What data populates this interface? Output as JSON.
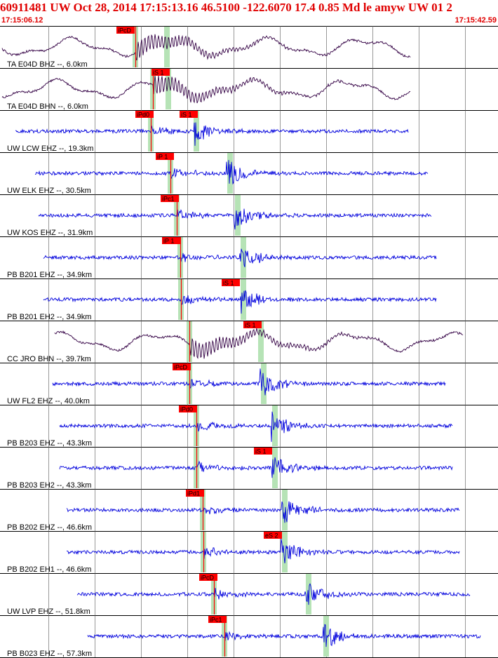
{
  "header": {
    "title": "60911481 UW Oct 28, 2014 17:15:13.16   46.5100 -122.6070 17.4 0.85 Md le amyw UW 01   2",
    "time_start": "17:15:06.12",
    "time_end": "17:15:42.59"
  },
  "colors": {
    "header": "#e00000",
    "pick": "#ff0000",
    "velocity_trace": "#0000dd",
    "displacement_trace": "#330044",
    "window": "#b6e3b6",
    "grid": "#000000"
  },
  "channels": [
    {
      "label": "TA E04D BHZ --, 6.0km",
      "pick": "iPcD",
      "trace": "broadband"
    },
    {
      "label": "TA E04D BHN --, 6.0km",
      "pick": "iS 1",
      "trace": "broadband"
    },
    {
      "label": "UW LCW EHZ --, 19.3km",
      "pick": "iPd0",
      "pick2": "iS 1",
      "trace": "short-period"
    },
    {
      "label": "UW ELK EHZ --, 30.5km",
      "pick": "iP 1",
      "trace": "short-period"
    },
    {
      "label": "UW KOS EHZ --, 31.9km",
      "pick": "iPc1",
      "trace": "short-period"
    },
    {
      "label": "PB B201 EHZ --, 34.9km",
      "pick": "iP 1",
      "trace": "short-period"
    },
    {
      "label": "PB B201 EH2 --, 34.9km",
      "pick": "iS 1",
      "trace": "short-period"
    },
    {
      "label": "CC JRO BHN --, 39.7km",
      "pick": "iS 1",
      "trace": "broadband"
    },
    {
      "label": "UW FL2 EHZ --, 40.0km",
      "pick": "iPcD",
      "trace": "short-period"
    },
    {
      "label": "PB B203 EHZ --, 43.3km",
      "pick": "iPd0",
      "trace": "short-period"
    },
    {
      "label": "PB B203 EH2 --, 43.3km",
      "pick": "iS 1",
      "trace": "short-period"
    },
    {
      "label": "PB B202 EHZ --, 46.6km",
      "pick": "iPd1",
      "trace": "short-period"
    },
    {
      "label": "PB B202 EH1 --, 46.6km",
      "pick": "eS 2",
      "trace": "short-period"
    },
    {
      "label": "UW LVP EHZ --, 51.8km",
      "pick": "iPcD",
      "trace": "short-period"
    },
    {
      "label": "PB B023 EHZ --, 57.3km",
      "pick": "iPc1",
      "trace": "short-period"
    }
  ]
}
